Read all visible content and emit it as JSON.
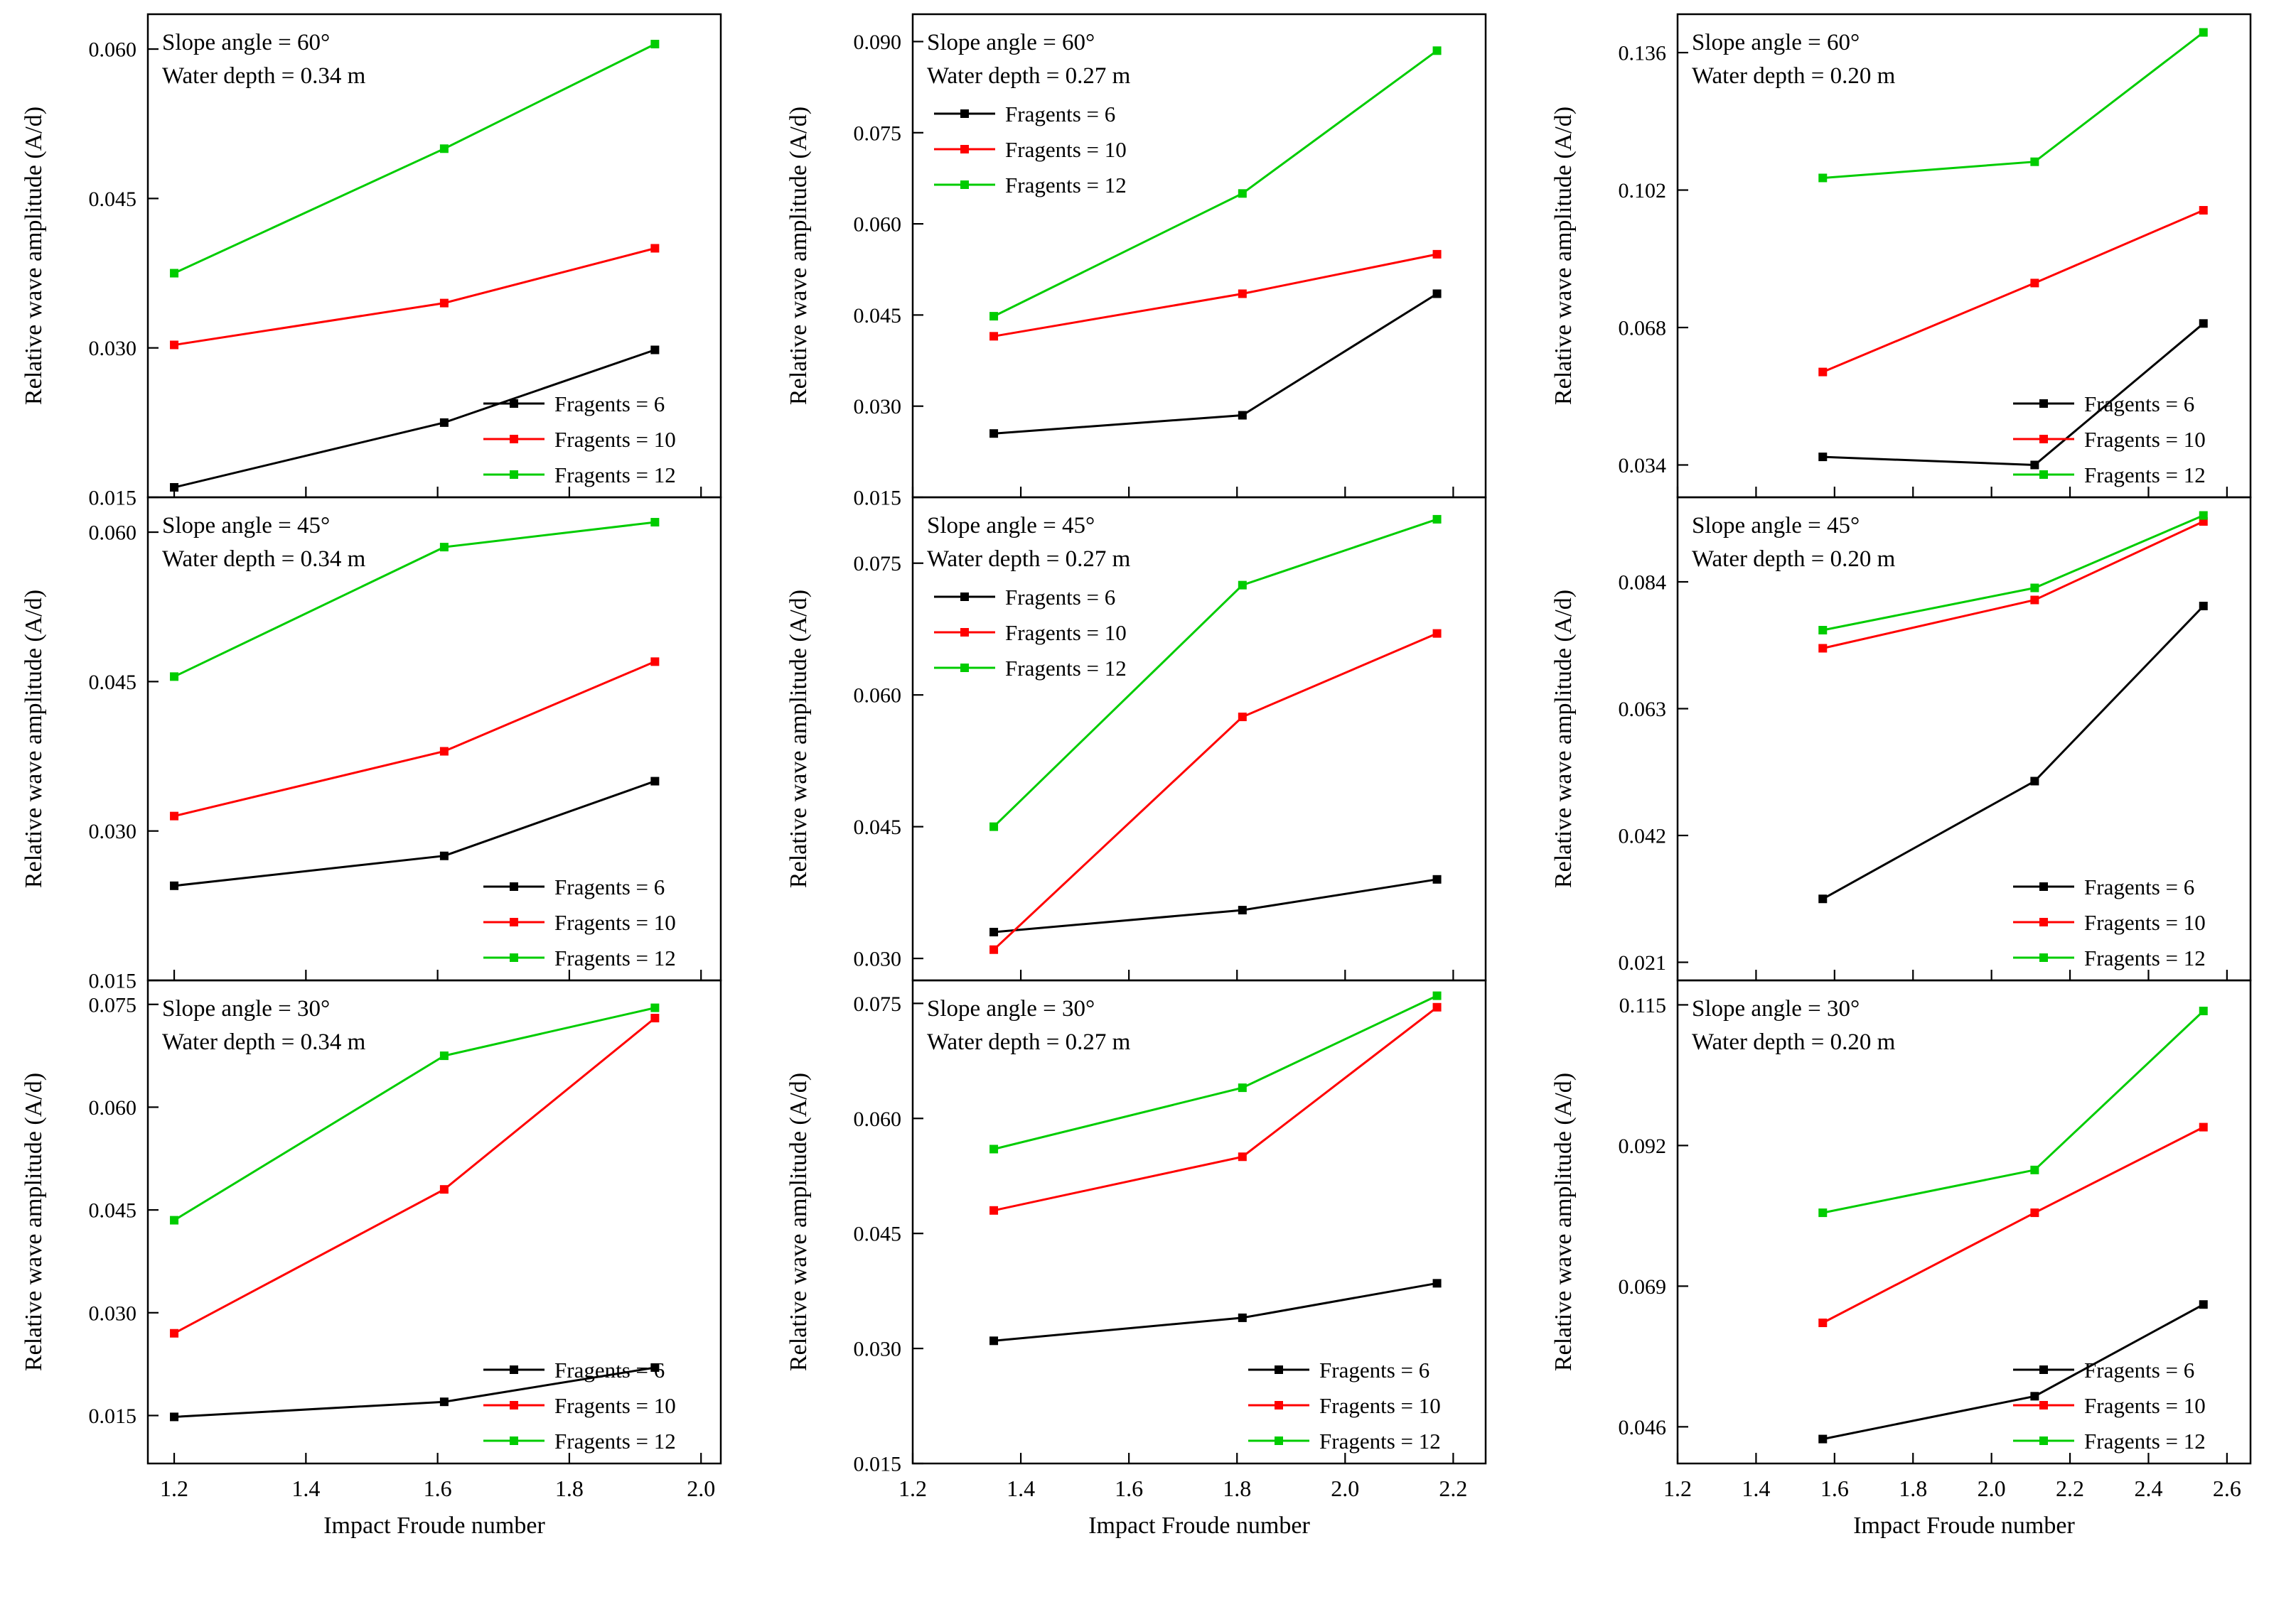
{
  "figure": {
    "x_axis_label": "Impact Froude number",
    "y_axis_label": "Relative wave amplitude (A/d)",
    "legend_labels": [
      "Fragents = 6",
      "Fragents = 10",
      "Fragents = 12"
    ],
    "colors": {
      "fragments6": "#000000",
      "fragments10": "#FF0000",
      "fragments12": "#00CC00"
    }
  },
  "chart_data": [
    {
      "type": "line",
      "annotation": [
        "Slope angle = 60°",
        "Water depth = 0.34 m"
      ],
      "x": [
        1.2,
        1.61,
        1.93
      ],
      "xlim": [
        1.16,
        2.03
      ],
      "xtick_values": [
        1.2,
        1.4,
        1.6,
        1.8,
        2.0
      ],
      "xtick_labels": [
        "1.2",
        "1.4",
        "1.6",
        "1.8",
        "2.0"
      ],
      "ylim": [
        0.015,
        0.0635
      ],
      "ytick_values": [
        0.015,
        0.03,
        0.045,
        0.06
      ],
      "ytick_labels": [
        "0.015",
        "0.030",
        "0.045",
        "0.060"
      ],
      "series": [
        {
          "name": "Fragents = 6",
          "color": "#000000",
          "values": [
            0.016,
            0.0225,
            0.0298
          ]
        },
        {
          "name": "Fragents = 10",
          "color": "#FF0000",
          "values": [
            0.0303,
            0.0345,
            0.04
          ]
        },
        {
          "name": "Fragents = 12",
          "color": "#00CC00",
          "values": [
            0.0375,
            0.05,
            0.0605
          ]
        }
      ],
      "legend_pos": "lower-right"
    },
    {
      "type": "line",
      "annotation": [
        "Slope angle = 60°",
        "Water depth = 0.27 m"
      ],
      "x": [
        1.35,
        1.81,
        2.17
      ],
      "xlim": [
        1.2,
        2.26
      ],
      "xtick_values": [
        1.2,
        1.4,
        1.6,
        1.8,
        2.0,
        2.2
      ],
      "xtick_labels": [
        "1.2",
        "1.4",
        "1.6",
        "1.8",
        "2.0",
        "2.2"
      ],
      "ylim": [
        0.015,
        0.0945
      ],
      "ytick_values": [
        0.015,
        0.03,
        0.045,
        0.06,
        0.075,
        0.09
      ],
      "ytick_labels": [
        "0.015",
        "0.030",
        "0.045",
        "0.060",
        "0.075",
        "0.090"
      ],
      "series": [
        {
          "name": "Fragents = 6",
          "color": "#000000",
          "values": [
            0.0255,
            0.0285,
            0.0485
          ]
        },
        {
          "name": "Fragents = 10",
          "color": "#FF0000",
          "values": [
            0.0415,
            0.0485,
            0.055
          ]
        },
        {
          "name": "Fragents = 12",
          "color": "#00CC00",
          "values": [
            0.0448,
            0.065,
            0.0885
          ]
        }
      ],
      "legend_pos": "upper-left"
    },
    {
      "type": "line",
      "annotation": [
        "Slope angle = 60°",
        "Water depth = 0.20 m"
      ],
      "x": [
        1.57,
        2.11,
        2.54
      ],
      "xlim": [
        1.2,
        2.66
      ],
      "xtick_values": [
        1.2,
        1.4,
        1.6,
        1.8,
        2.0,
        2.2,
        2.4,
        2.6
      ],
      "xtick_labels": [
        "1.2",
        "1.4",
        "1.6",
        "1.8",
        "2.0",
        "2.2",
        "2.4",
        "2.6"
      ],
      "ylim": [
        0.026,
        0.1455
      ],
      "ytick_values": [
        0.034,
        0.068,
        0.102,
        0.136
      ],
      "ytick_labels": [
        "0.034",
        "0.068",
        "0.102",
        "0.136"
      ],
      "series": [
        {
          "name": "Fragents = 6",
          "color": "#000000",
          "values": [
            0.036,
            0.034,
            0.069
          ]
        },
        {
          "name": "Fragents = 10",
          "color": "#FF0000",
          "values": [
            0.057,
            0.079,
            0.097
          ]
        },
        {
          "name": "Fragents = 12",
          "color": "#00CC00",
          "values": [
            0.105,
            0.109,
            0.141
          ]
        }
      ],
      "legend_pos": "lower-right"
    },
    {
      "type": "line",
      "annotation": [
        "Slope angle = 45°",
        "Water depth = 0.34 m"
      ],
      "x": [
        1.2,
        1.61,
        1.93
      ],
      "xlim": [
        1.16,
        2.03
      ],
      "xtick_values": [
        1.2,
        1.4,
        1.6,
        1.8,
        2.0
      ],
      "xtick_labels": [
        "1.2",
        "1.4",
        "1.6",
        "1.8",
        "2.0"
      ],
      "ylim": [
        0.015,
        0.0635
      ],
      "ytick_values": [
        0.015,
        0.03,
        0.045,
        0.06
      ],
      "ytick_labels": [
        "0.015",
        "0.030",
        "0.045",
        "0.060"
      ],
      "series": [
        {
          "name": "Fragents = 6",
          "color": "#000000",
          "values": [
            0.0245,
            0.0275,
            0.035
          ]
        },
        {
          "name": "Fragents = 10",
          "color": "#FF0000",
          "values": [
            0.0315,
            0.038,
            0.047
          ]
        },
        {
          "name": "Fragents = 12",
          "color": "#00CC00",
          "values": [
            0.0455,
            0.0585,
            0.061
          ]
        }
      ],
      "legend_pos": "lower-right"
    },
    {
      "type": "line",
      "annotation": [
        "Slope angle = 45°",
        "Water depth = 0.27 m"
      ],
      "x": [
        1.35,
        1.81,
        2.17
      ],
      "xlim": [
        1.2,
        2.26
      ],
      "xtick_values": [
        1.2,
        1.4,
        1.6,
        1.8,
        2.0,
        2.2
      ],
      "xtick_labels": [
        "1.2",
        "1.4",
        "1.6",
        "1.8",
        "2.0",
        "2.2"
      ],
      "ylim": [
        0.0275,
        0.0825
      ],
      "ytick_values": [
        0.03,
        0.045,
        0.06,
        0.075
      ],
      "ytick_labels": [
        "0.030",
        "0.045",
        "0.060",
        "0.075"
      ],
      "series": [
        {
          "name": "Fragents = 6",
          "color": "#000000",
          "values": [
            0.033,
            0.0355,
            0.039
          ]
        },
        {
          "name": "Fragents = 10",
          "color": "#FF0000",
          "values": [
            0.031,
            0.0575,
            0.067
          ]
        },
        {
          "name": "Fragents = 12",
          "color": "#00CC00",
          "values": [
            0.045,
            0.0725,
            0.08
          ]
        }
      ],
      "legend_pos": "upper-left"
    },
    {
      "type": "line",
      "annotation": [
        "Slope angle = 45°",
        "Water depth = 0.20 m"
      ],
      "x": [
        1.57,
        2.11,
        2.54
      ],
      "xlim": [
        1.2,
        2.66
      ],
      "xtick_values": [
        1.2,
        1.4,
        1.6,
        1.8,
        2.0,
        2.2,
        2.4,
        2.6
      ],
      "xtick_labels": [
        "1.2",
        "1.4",
        "1.6",
        "1.8",
        "2.0",
        "2.2",
        "2.4",
        "2.6"
      ],
      "ylim": [
        0.018,
        0.098
      ],
      "ytick_values": [
        0.021,
        0.042,
        0.063,
        0.084
      ],
      "ytick_labels": [
        "0.021",
        "0.042",
        "0.063",
        "0.084"
      ],
      "series": [
        {
          "name": "Fragents = 6",
          "color": "#000000",
          "values": [
            0.0315,
            0.051,
            0.08
          ]
        },
        {
          "name": "Fragents = 10",
          "color": "#FF0000",
          "values": [
            0.073,
            0.081,
            0.094
          ]
        },
        {
          "name": "Fragents = 12",
          "color": "#00CC00",
          "values": [
            0.076,
            0.083,
            0.095
          ]
        }
      ],
      "legend_pos": "lower-right"
    },
    {
      "type": "line",
      "annotation": [
        "Slope angle = 30°",
        "Water depth = 0.34 m"
      ],
      "x": [
        1.2,
        1.61,
        1.93
      ],
      "xlim": [
        1.16,
        2.03
      ],
      "xtick_values": [
        1.2,
        1.4,
        1.6,
        1.8,
        2.0
      ],
      "xtick_labels": [
        "1.2",
        "1.4",
        "1.6",
        "1.8",
        "2.0"
      ],
      "ylim": [
        0.008,
        0.0785
      ],
      "ytick_values": [
        0.015,
        0.03,
        0.045,
        0.06,
        0.075
      ],
      "ytick_labels": [
        "0.015",
        "0.030",
        "0.045",
        "0.060",
        "0.075"
      ],
      "series": [
        {
          "name": "Fragents = 6",
          "color": "#000000",
          "values": [
            0.0148,
            0.017,
            0.022
          ]
        },
        {
          "name": "Fragents = 10",
          "color": "#FF0000",
          "values": [
            0.027,
            0.048,
            0.073
          ]
        },
        {
          "name": "Fragents = 12",
          "color": "#00CC00",
          "values": [
            0.0435,
            0.0675,
            0.0745
          ]
        }
      ],
      "legend_pos": "lower-right"
    },
    {
      "type": "line",
      "annotation": [
        "Slope angle = 30°",
        "Water depth = 0.27 m"
      ],
      "x": [
        1.35,
        1.81,
        2.17
      ],
      "xlim": [
        1.2,
        2.26
      ],
      "xtick_values": [
        1.2,
        1.4,
        1.6,
        1.8,
        2.0,
        2.2
      ],
      "xtick_labels": [
        "1.2",
        "1.4",
        "1.6",
        "1.8",
        "2.0",
        "2.2"
      ],
      "ylim": [
        0.015,
        0.078
      ],
      "ytick_values": [
        0.015,
        0.03,
        0.045,
        0.06,
        0.075
      ],
      "ytick_labels": [
        "0.015",
        "0.030",
        "0.045",
        "0.060",
        "0.075"
      ],
      "series": [
        {
          "name": "Fragents = 6",
          "color": "#000000",
          "values": [
            0.031,
            0.034,
            0.0385
          ]
        },
        {
          "name": "Fragents = 10",
          "color": "#FF0000",
          "values": [
            0.048,
            0.055,
            0.0745
          ]
        },
        {
          "name": "Fragents = 12",
          "color": "#00CC00",
          "values": [
            0.056,
            0.064,
            0.076
          ]
        }
      ],
      "legend_pos": "lower-right"
    },
    {
      "type": "line",
      "annotation": [
        "Slope angle = 30°",
        "Water depth = 0.20 m"
      ],
      "x": [
        1.57,
        2.11,
        2.54
      ],
      "xlim": [
        1.2,
        2.66
      ],
      "xtick_values": [
        1.2,
        1.4,
        1.6,
        1.8,
        2.0,
        2.2,
        2.4,
        2.6
      ],
      "xtick_labels": [
        "1.2",
        "1.4",
        "1.6",
        "1.8",
        "2.0",
        "2.2",
        "2.4",
        "2.6"
      ],
      "ylim": [
        0.04,
        0.119
      ],
      "ytick_values": [
        0.046,
        0.069,
        0.092,
        0.115
      ],
      "ytick_labels": [
        "0.046",
        "0.069",
        "0.092",
        "0.115"
      ],
      "series": [
        {
          "name": "Fragents = 6",
          "color": "#000000",
          "values": [
            0.044,
            0.051,
            0.066
          ]
        },
        {
          "name": "Fragents = 10",
          "color": "#FF0000",
          "values": [
            0.063,
            0.081,
            0.095
          ]
        },
        {
          "name": "Fragents = 12",
          "color": "#00CC00",
          "values": [
            0.081,
            0.088,
            0.114
          ]
        }
      ],
      "legend_pos": "lower-right"
    }
  ]
}
